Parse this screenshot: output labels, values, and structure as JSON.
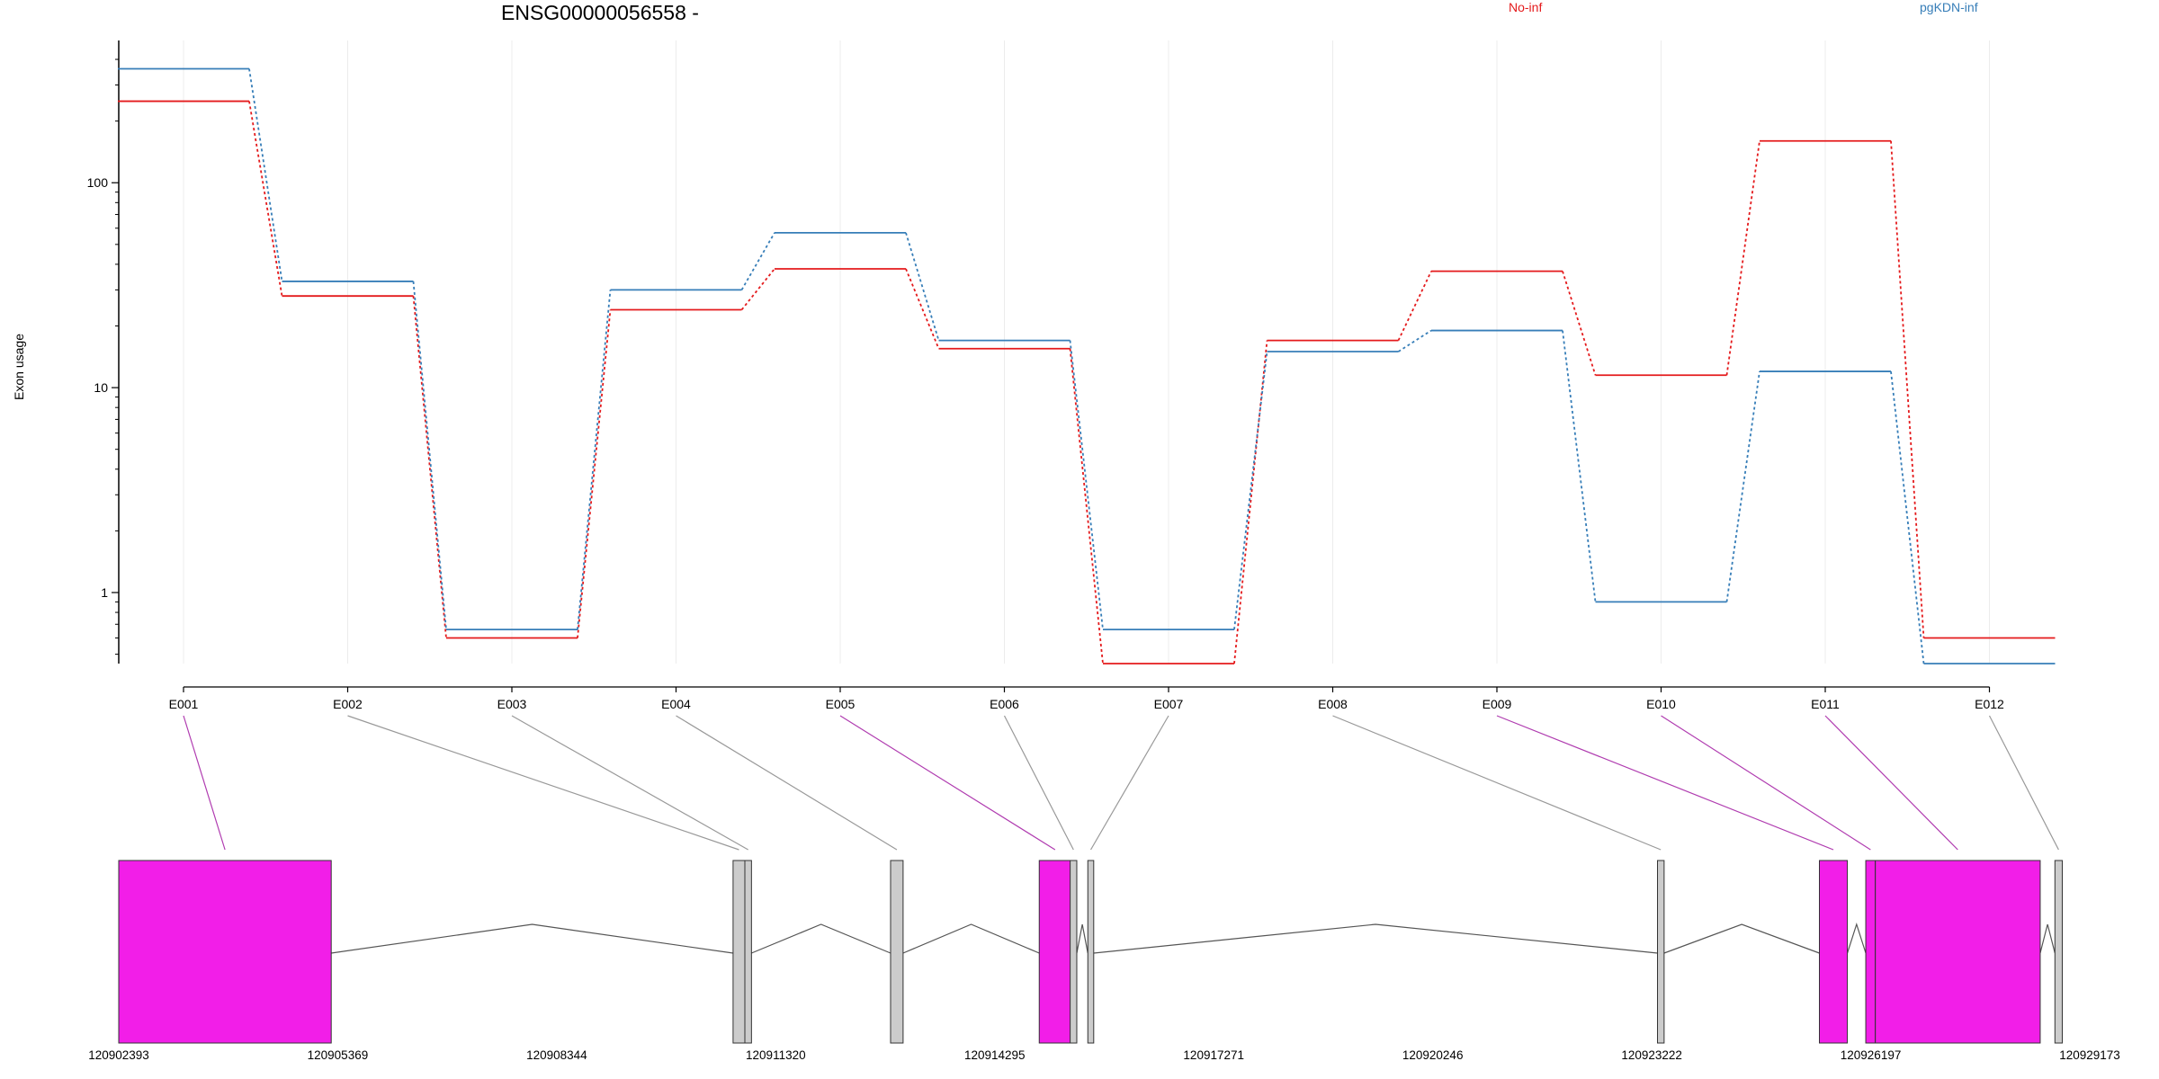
{
  "chart_data": {
    "type": "line",
    "title": "ENSG00000056558 -",
    "xlabel": "",
    "ylabel": "Exon usage",
    "y_scale": "log",
    "ylim": [
      0.45,
      480
    ],
    "y_ticks": [
      1,
      10,
      100
    ],
    "y_tick_labels": [
      "1",
      "10",
      "100"
    ],
    "grid": "vertical, light",
    "categories": [
      "E001",
      "E002",
      "E003",
      "E004",
      "E005",
      "E006",
      "E007",
      "E008",
      "E009",
      "E010",
      "E011",
      "E012"
    ],
    "series": [
      {
        "name": "No-inf",
        "color": "#e41a1c",
        "values": [
          250,
          28,
          0.6,
          24,
          38,
          15.5,
          0.45,
          17,
          37,
          11.5,
          160,
          0.6
        ]
      },
      {
        "name": "pgKDN-inf",
        "color": "#377eb8",
        "values": [
          360,
          33,
          0.66,
          30,
          57,
          17,
          0.66,
          15,
          19,
          0.9,
          12,
          0.45
        ]
      }
    ],
    "legend_placement": "top",
    "gene_model": {
      "coordinate_labels": [
        "120902393",
        "120905369",
        "120908344",
        "120911320",
        "120914295",
        "120917271",
        "120920246",
        "120923222",
        "120926197",
        "120929173"
      ],
      "coord_min": 120902393,
      "coord_max": 120929173,
      "exons": [
        {
          "id": "E001",
          "start": 120902393,
          "end": 120905280,
          "significant": true
        },
        {
          "id": "E002",
          "start": 120910740,
          "end": 120910900,
          "significant": false
        },
        {
          "id": "E003",
          "start": 120910900,
          "end": 120910990,
          "significant": false
        },
        {
          "id": "E004",
          "start": 120912880,
          "end": 120913050,
          "significant": false
        },
        {
          "id": "E005",
          "start": 120914900,
          "end": 120915330,
          "significant": true
        },
        {
          "id": "E006",
          "start": 120915320,
          "end": 120915410,
          "significant": false
        },
        {
          "id": "E007",
          "start": 120915560,
          "end": 120915640,
          "significant": false
        },
        {
          "id": "E008",
          "start": 120923300,
          "end": 120923390,
          "significant": false
        },
        {
          "id": "E009",
          "start": 120925500,
          "end": 120925880,
          "significant": true
        },
        {
          "id": "E010",
          "start": 120926130,
          "end": 120926260,
          "significant": true
        },
        {
          "id": "E011",
          "start": 120926260,
          "end": 120928500,
          "significant": true
        },
        {
          "id": "E012",
          "start": 120928700,
          "end": 120928800,
          "significant": false
        }
      ],
      "significant_color": "#f21ee8",
      "normal_color": "#cccccc"
    }
  }
}
